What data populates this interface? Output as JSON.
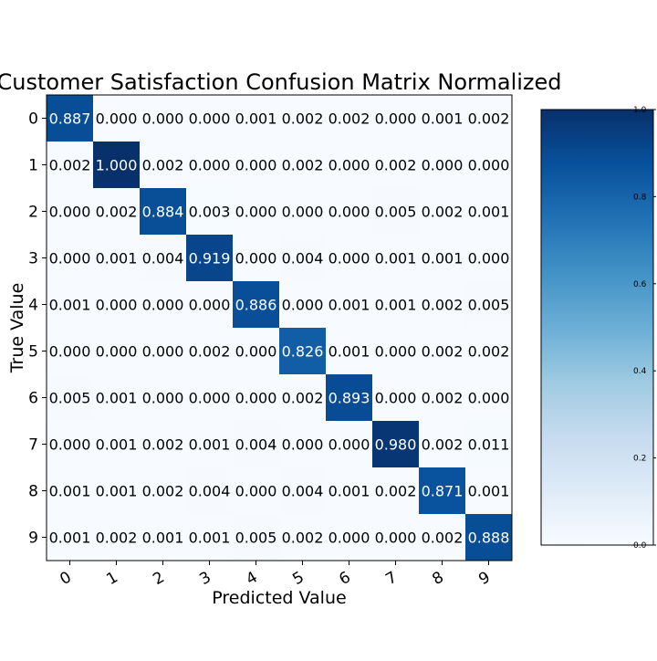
{
  "chart_data": {
    "type": "heatmap",
    "title": "Customer Satisfaction Confusion Matrix Normalized",
    "xlabel": "Predicted Value",
    "ylabel": "True Value",
    "x_categories": [
      "0",
      "1",
      "2",
      "3",
      "4",
      "5",
      "6",
      "7",
      "8",
      "9"
    ],
    "y_categories": [
      "0",
      "1",
      "2",
      "3",
      "4",
      "5",
      "6",
      "7",
      "8",
      "9"
    ],
    "values": [
      [
        0.887,
        0.0,
        0.0,
        0.0,
        0.001,
        0.002,
        0.002,
        0.0,
        0.001,
        0.002
      ],
      [
        0.002,
        1.0,
        0.002,
        0.0,
        0.0,
        0.002,
        0.0,
        0.002,
        0.0,
        0.0
      ],
      [
        0.0,
        0.002,
        0.884,
        0.003,
        0.0,
        0.0,
        0.0,
        0.005,
        0.002,
        0.001
      ],
      [
        0.0,
        0.001,
        0.004,
        0.919,
        0.0,
        0.004,
        0.0,
        0.001,
        0.001,
        0.0
      ],
      [
        0.001,
        0.0,
        0.0,
        0.0,
        0.886,
        0.0,
        0.001,
        0.001,
        0.002,
        0.005
      ],
      [
        0.0,
        0.0,
        0.0,
        0.002,
        0.0,
        0.826,
        0.001,
        0.0,
        0.002,
        0.002
      ],
      [
        0.005,
        0.001,
        0.0,
        0.0,
        0.0,
        0.002,
        0.893,
        0.0,
        0.002,
        0.0
      ],
      [
        0.0,
        0.001,
        0.002,
        0.001,
        0.004,
        0.0,
        0.0,
        0.98,
        0.002,
        0.011
      ],
      [
        0.001,
        0.001,
        0.002,
        0.004,
        0.0,
        0.004,
        0.001,
        0.002,
        0.871,
        0.001
      ],
      [
        0.001,
        0.002,
        0.001,
        0.001,
        0.005,
        0.002,
        0.0,
        0.0,
        0.002,
        0.888
      ]
    ],
    "value_format_decimals": 3,
    "colormap": "Blues",
    "color_stops": [
      "#f7fbff",
      "#deebf7",
      "#c6dbef",
      "#9ecae1",
      "#6baed6",
      "#4292c6",
      "#2171b5",
      "#08519c",
      "#08306b"
    ],
    "colorbar": {
      "range": [
        0.0,
        1.0
      ],
      "ticks": [
        "0.0",
        "0.2",
        "0.4",
        "0.6",
        "0.8",
        "1.0"
      ],
      "placement": "right"
    },
    "x_tick_rotation": "tilted",
    "grid": false
  }
}
